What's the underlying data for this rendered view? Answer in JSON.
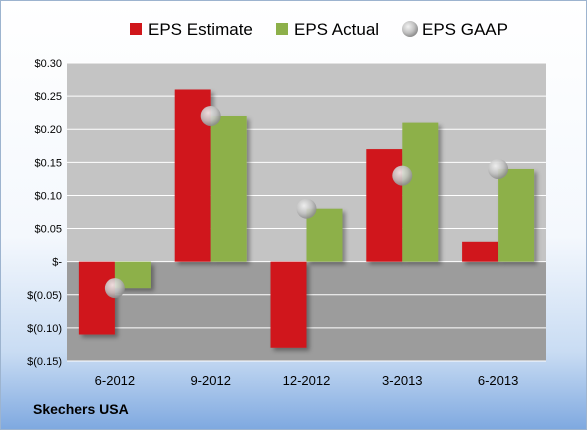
{
  "company": "Skechers USA",
  "colors": {
    "estimate": "#d0161b",
    "actual": "#8db04a",
    "gaap": "#bcbcbc",
    "plot_upper": "#c4c4c4",
    "plot_lower": "#9c9c9c"
  },
  "chart_data": {
    "type": "bar",
    "categories": [
      "6-2012",
      "9-2012",
      "12-2012",
      "3-2013",
      "6-2013"
    ],
    "series": [
      {
        "name": "EPS Estimate",
        "kind": "bar",
        "values": [
          -0.11,
          0.26,
          -0.13,
          0.17,
          0.03
        ]
      },
      {
        "name": "EPS Actual",
        "kind": "bar",
        "values": [
          -0.04,
          0.22,
          0.08,
          0.21,
          0.14
        ]
      },
      {
        "name": "EPS GAAP",
        "kind": "marker",
        "values": [
          -0.04,
          0.22,
          0.08,
          0.13,
          0.14
        ]
      }
    ],
    "ylim": [
      -0.15,
      0.3
    ],
    "yticks": [
      0.3,
      0.25,
      0.2,
      0.15,
      0.1,
      0.05,
      0,
      -0.05,
      -0.1,
      -0.15
    ],
    "ytick_labels": [
      "$0.30",
      "$0.25",
      "$0.20",
      "$0.15",
      "$0.10",
      "$0.05",
      "$-",
      "$(0.05)",
      "$(0.10)",
      "$(0.15)"
    ],
    "legend_position": "top",
    "grid": true
  }
}
